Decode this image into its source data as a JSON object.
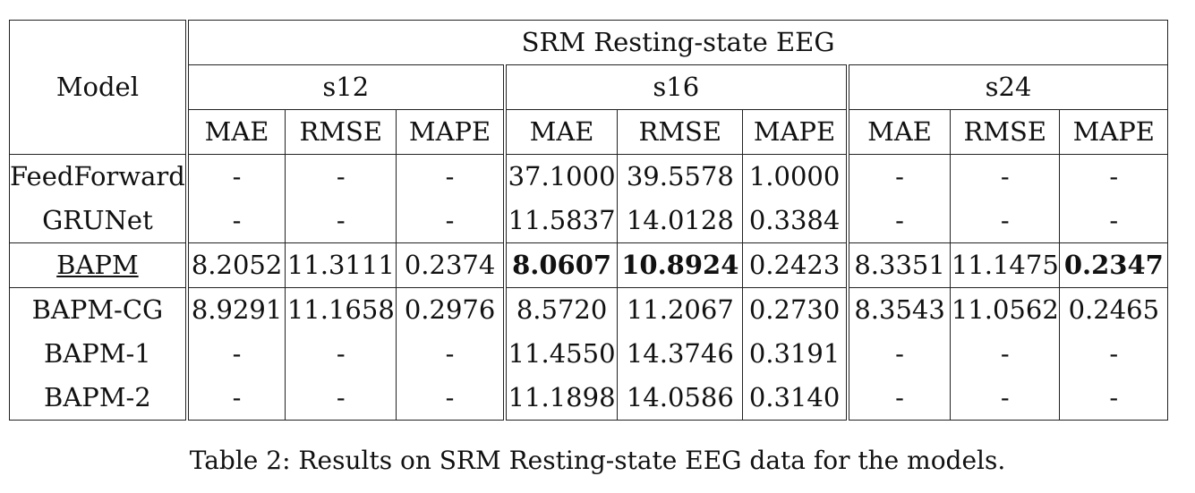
{
  "table": {
    "dataset_header": "SRM Resting-state EEG",
    "model_header": "Model",
    "subsets": [
      "s12",
      "s16",
      "s24"
    ],
    "metrics": [
      "MAE",
      "RMSE",
      "MAPE"
    ],
    "rows": [
      {
        "model": "FeedForward",
        "values": [
          "-",
          "-",
          "-",
          "37.1000",
          "39.5578",
          "1.0000",
          "-",
          "-",
          "-"
        ]
      },
      {
        "model": "GRUNet",
        "values": [
          "-",
          "-",
          "-",
          "11.5837",
          "14.0128",
          "0.3384",
          "-",
          "-",
          "-"
        ]
      },
      {
        "model": "BAPM",
        "values": [
          "8.2052",
          "11.3111",
          "0.2374",
          "8.0607",
          "10.8924",
          "0.2423",
          "8.3351",
          "11.1475",
          "0.2347"
        ]
      },
      {
        "model": "BAPM-CG",
        "values": [
          "8.9291",
          "11.1658",
          "0.2976",
          "8.5720",
          "11.2067",
          "0.2730",
          "8.3543",
          "11.0562",
          "0.2465"
        ]
      },
      {
        "model": "BAPM-1",
        "values": [
          "-",
          "-",
          "-",
          "11.4550",
          "14.3746",
          "0.3191",
          "-",
          "-",
          "-"
        ]
      },
      {
        "model": "BAPM-2",
        "values": [
          "-",
          "-",
          "-",
          "11.1898",
          "14.0586",
          "0.3140",
          "-",
          "-",
          "-"
        ]
      }
    ]
  },
  "caption": "Table 2: Results on SRM Resting-state EEG data for the models."
}
